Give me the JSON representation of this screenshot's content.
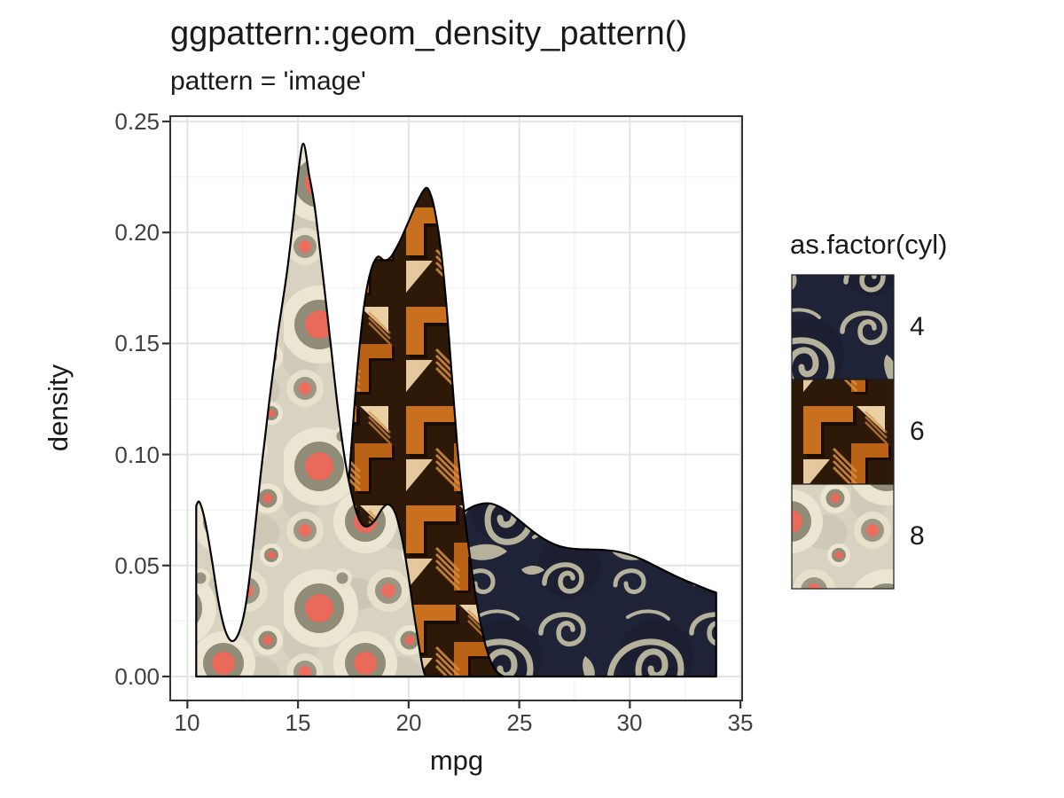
{
  "title": "ggpattern::geom_density_pattern()",
  "subtitle": "pattern = 'image'",
  "axes": {
    "x": {
      "label": "mpg",
      "ticks": [
        10,
        15,
        20,
        25,
        30,
        35
      ],
      "tick_labels": [
        "10",
        "15",
        "20",
        "25",
        "30",
        "35"
      ],
      "minor": [
        12.5,
        17.5,
        22.5,
        27.5,
        32.5
      ]
    },
    "y": {
      "label": "density",
      "ticks": [
        0,
        0.05,
        0.1,
        0.15,
        0.2,
        0.25
      ],
      "tick_labels": [
        "0.00",
        "0.05",
        "0.10",
        "0.15",
        "0.20",
        "0.25"
      ],
      "minor": [
        0.025,
        0.075,
        0.125,
        0.175,
        0.225
      ]
    }
  },
  "legend": {
    "title": "as.factor(cyl)",
    "items": [
      {
        "label": "4",
        "pattern": "swirl-navy"
      },
      {
        "label": "6",
        "pattern": "basket-orange"
      },
      {
        "label": "8",
        "pattern": "circles-beige"
      }
    ]
  },
  "colors": {
    "outline": "#000000",
    "panel_border": "#333333",
    "grid_major": "#e4e4e4",
    "grid_minor": "#f3f3f3",
    "tick_text": "#404040",
    "navy_bg": "#1f2337",
    "navy_swirl": "#b6b19a",
    "brown_bg": "#2e1808",
    "brown_orange": "#c8701e",
    "brown_cream": "#ead0a6",
    "beige_bg": "#d8d3c1",
    "beige_ring": "#ece5d1",
    "beige_inner": "#8f8c77",
    "beige_red": "#e96a5b"
  },
  "chart_data": {
    "type": "area",
    "title": "ggpattern::geom_density_pattern()",
    "subtitle": "pattern = 'image'",
    "xlabel": "mpg",
    "ylabel": "density",
    "xlim": [
      9.225,
      35.075
    ],
    "ylim": [
      -0.0108,
      0.2524
    ],
    "grid": true,
    "legend_position": "right",
    "series": [
      {
        "name": "4",
        "pattern": "swirl-navy",
        "points": [
          [
            21.4,
            0
          ],
          [
            21.4,
            0.065
          ],
          [
            21.9,
            0.0695
          ],
          [
            22.4,
            0.0735
          ],
          [
            22.9,
            0.0765
          ],
          [
            23.3,
            0.0778
          ],
          [
            23.7,
            0.0779
          ],
          [
            24.1,
            0.0765
          ],
          [
            24.6,
            0.0735
          ],
          [
            25.1,
            0.0695
          ],
          [
            25.6,
            0.0655
          ],
          [
            26.1,
            0.062
          ],
          [
            26.6,
            0.0595
          ],
          [
            27.1,
            0.058
          ],
          [
            27.6,
            0.0574
          ],
          [
            28.2,
            0.0572
          ],
          [
            28.8,
            0.057
          ],
          [
            29.4,
            0.0563
          ],
          [
            30.0,
            0.0548
          ],
          [
            30.6,
            0.0525
          ],
          [
            31.2,
            0.0495
          ],
          [
            31.8,
            0.0465
          ],
          [
            32.4,
            0.0437
          ],
          [
            33.0,
            0.0413
          ],
          [
            33.5,
            0.0392
          ],
          [
            33.9,
            0.0378
          ],
          [
            33.9,
            0
          ]
        ]
      },
      {
        "name": "6",
        "pattern": "basket-orange",
        "points": [
          [
            15.9,
            0
          ],
          [
            16.2,
            0.003
          ],
          [
            16.5,
            0.012
          ],
          [
            16.8,
            0.03
          ],
          [
            17.1,
            0.062
          ],
          [
            17.4,
            0.102
          ],
          [
            17.7,
            0.14
          ],
          [
            18.0,
            0.168
          ],
          [
            18.3,
            0.183
          ],
          [
            18.6,
            0.189
          ],
          [
            18.9,
            0.1875
          ],
          [
            19.2,
            0.189
          ],
          [
            19.6,
            0.196
          ],
          [
            20.0,
            0.205
          ],
          [
            20.4,
            0.214
          ],
          [
            20.77,
            0.22
          ],
          [
            21.0,
            0.217
          ],
          [
            21.2,
            0.209
          ],
          [
            21.45,
            0.193
          ],
          [
            21.7,
            0.168
          ],
          [
            21.95,
            0.136
          ],
          [
            22.2,
            0.104
          ],
          [
            22.5,
            0.075
          ],
          [
            22.8,
            0.052
          ],
          [
            23.1,
            0.032
          ],
          [
            23.4,
            0.017
          ],
          [
            23.7,
            0.007
          ],
          [
            24.0,
            0.002
          ],
          [
            24.3,
            0
          ]
        ]
      },
      {
        "name": "8",
        "pattern": "circles-beige",
        "points": [
          [
            10.4,
            0
          ],
          [
            10.4,
            0.077
          ],
          [
            10.55,
            0.0785
          ],
          [
            10.8,
            0.07
          ],
          [
            11.1,
            0.053
          ],
          [
            11.4,
            0.034
          ],
          [
            11.7,
            0.021
          ],
          [
            12.0,
            0.016
          ],
          [
            12.3,
            0.019
          ],
          [
            12.6,
            0.03
          ],
          [
            12.9,
            0.052
          ],
          [
            13.3,
            0.09
          ],
          [
            13.7,
            0.124
          ],
          [
            14.1,
            0.155
          ],
          [
            14.5,
            0.182
          ],
          [
            14.8,
            0.207
          ],
          [
            15.0,
            0.226
          ],
          [
            15.24,
            0.24
          ],
          [
            15.5,
            0.226
          ],
          [
            15.75,
            0.212
          ],
          [
            16.1,
            0.183
          ],
          [
            16.45,
            0.152
          ],
          [
            16.8,
            0.121
          ],
          [
            17.15,
            0.096
          ],
          [
            17.5,
            0.079
          ],
          [
            17.8,
            0.07
          ],
          [
            18.1,
            0.0675
          ],
          [
            18.45,
            0.07
          ],
          [
            18.8,
            0.0755
          ],
          [
            19.1,
            0.0775
          ],
          [
            19.4,
            0.0735
          ],
          [
            19.7,
            0.062
          ],
          [
            19.95,
            0.048
          ],
          [
            20.2,
            0.031
          ],
          [
            20.45,
            0.015
          ],
          [
            20.62,
            0.005
          ],
          [
            20.75,
            0
          ]
        ]
      }
    ]
  }
}
